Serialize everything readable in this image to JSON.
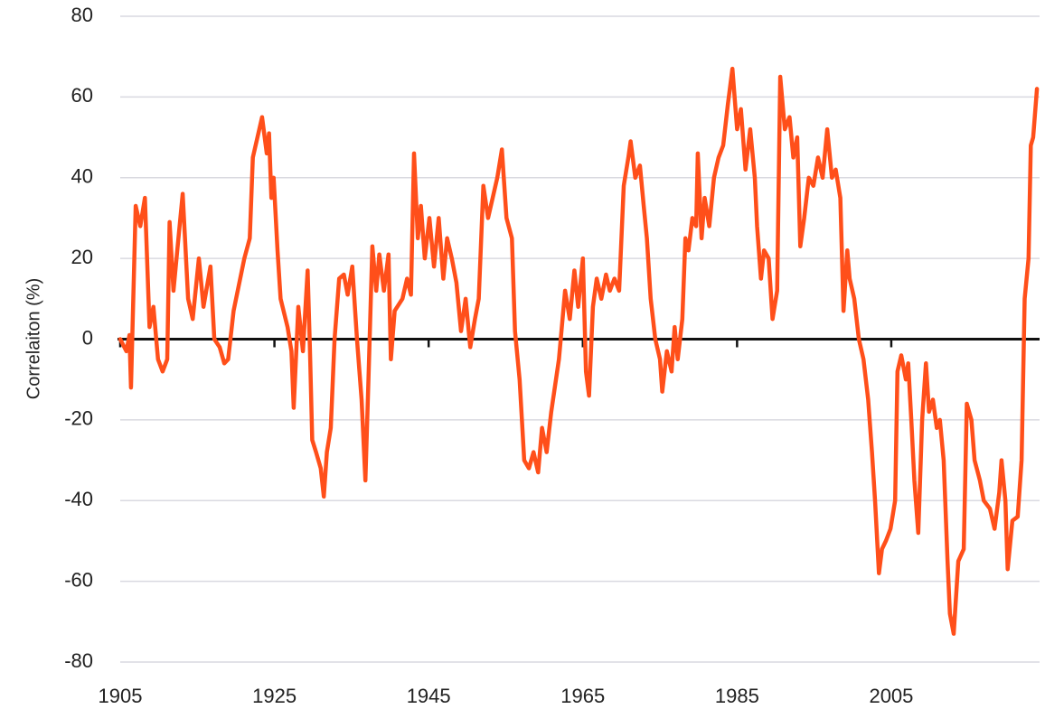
{
  "chart_data": {
    "type": "line",
    "y_label": "Correlaiton (%)",
    "color": "#ff4f1a",
    "grid": true,
    "xlim": [
      1905,
      2024
    ],
    "xticks": [
      1905,
      1925,
      1945,
      1965,
      1985,
      2005
    ],
    "ylim": [
      -80,
      80
    ],
    "yticks": [
      -80,
      -60,
      -40,
      -20,
      0,
      20,
      40,
      60,
      80
    ],
    "x": [
      1905.0,
      1905.8,
      1906.2,
      1906.4,
      1907.0,
      1907.6,
      1908.2,
      1908.8,
      1909.3,
      1909.9,
      1910.5,
      1911.1,
      1911.4,
      1911.9,
      1912.4,
      1913.1,
      1913.8,
      1914.4,
      1915.2,
      1915.8,
      1916.7,
      1917.2,
      1917.9,
      1918.5,
      1919.0,
      1919.7,
      1921.1,
      1921.8,
      1922.2,
      1922.8,
      1923.4,
      1924.0,
      1924.3,
      1924.6,
      1924.9,
      1925.4,
      1925.8,
      1926.7,
      1927.2,
      1927.5,
      1928.1,
      1928.7,
      1929.3,
      1929.6,
      1929.9,
      1930.4,
      1931.0,
      1931.4,
      1931.8,
      1932.3,
      1932.8,
      1933.4,
      1934.0,
      1934.5,
      1935.1,
      1935.7,
      1936.3,
      1936.8,
      1937.2,
      1937.7,
      1938.2,
      1938.6,
      1939.2,
      1939.8,
      1940.1,
      1940.6,
      1941.6,
      1942.2,
      1942.7,
      1943.1,
      1943.6,
      1944.0,
      1944.5,
      1945.1,
      1945.7,
      1946.3,
      1946.9,
      1947.4,
      1948.0,
      1948.6,
      1949.2,
      1949.8,
      1950.4,
      1951.0,
      1951.5,
      1952.1,
      1952.7,
      1953.3,
      1953.9,
      1954.5,
      1955.1,
      1955.8,
      1956.2,
      1956.8,
      1957.4,
      1958.0,
      1958.6,
      1959.2,
      1959.7,
      1960.3,
      1960.9,
      1961.9,
      1962.7,
      1963.3,
      1963.9,
      1964.4,
      1965.0,
      1965.4,
      1965.8,
      1966.3,
      1966.8,
      1967.4,
      1968.0,
      1968.5,
      1969.1,
      1969.7,
      1970.3,
      1970.9,
      1971.2,
      1971.8,
      1972.4,
      1972.9,
      1973.3,
      1973.8,
      1974.4,
      1975.0,
      1975.3,
      1975.9,
      1976.5,
      1976.9,
      1977.3,
      1977.9,
      1978.3,
      1978.7,
      1979.2,
      1979.7,
      1979.9,
      1980.4,
      1980.8,
      1981.4,
      1982.0,
      1982.6,
      1983.2,
      1983.8,
      1984.4,
      1985.0,
      1985.5,
      1986.1,
      1986.7,
      1987.3,
      1987.6,
      1988.1,
      1988.5,
      1989.1,
      1989.6,
      1990.2,
      1990.6,
      1991.2,
      1991.8,
      1992.3,
      1992.8,
      1993.2,
      1993.7,
      1994.3,
      1994.9,
      1995.5,
      1996.1,
      1996.7,
      1997.3,
      1997.8,
      1998.4,
      1998.8,
      1999.3,
      1999.6,
      2000.2,
      2000.8,
      2001.4,
      2002.0,
      2002.5,
      2002.9,
      2003.4,
      2003.8,
      2004.3,
      2004.9,
      2005.5,
      2005.8,
      2006.3,
      2006.9,
      2007.2,
      2007.6,
      2008.0,
      2008.5,
      2009.0,
      2009.5,
      2009.9,
      2010.4,
      2010.9,
      2011.3,
      2011.8,
      2012.3,
      2012.6,
      2013.1,
      2013.7,
      2014.4,
      2014.8,
      2015.4,
      2015.8,
      2016.5,
      2017.0,
      2017.8,
      2018.4,
      2019.0,
      2019.3,
      2019.8,
      2020.1,
      2020.7,
      2021.4,
      2021.9,
      2022.3,
      2022.8,
      2023.1,
      2023.4,
      2023.9
    ],
    "values": [
      0,
      -3,
      1,
      -12,
      33,
      28,
      35,
      3,
      8,
      -5,
      -8,
      -5,
      29,
      12,
      22,
      36,
      10,
      5,
      20,
      8,
      18,
      0,
      -2,
      -6,
      -5,
      7,
      20,
      25,
      45,
      50,
      55,
      46,
      51,
      35,
      40,
      22,
      10,
      3,
      -3,
      -17,
      8,
      -3,
      17,
      -2,
      -25,
      -28,
      -32,
      -39,
      -28,
      -22,
      0,
      15,
      16,
      11,
      18,
      0,
      -15,
      -35,
      -10,
      23,
      12,
      21,
      12,
      21,
      -5,
      7,
      10,
      15,
      11,
      46,
      25,
      33,
      20,
      30,
      18,
      30,
      15,
      25,
      20,
      14,
      2,
      10,
      -2,
      5,
      10,
      38,
      30,
      35,
      40,
      47,
      30,
      25,
      2,
      -10,
      -30,
      -32,
      -28,
      -33,
      -22,
      -28,
      -18,
      -5,
      12,
      5,
      17,
      8,
      20,
      -8,
      -14,
      8,
      15,
      10,
      16,
      12,
      15,
      12,
      38,
      45,
      49,
      40,
      43,
      33,
      25,
      10,
      0,
      -5,
      -13,
      -3,
      -8,
      3,
      -5,
      5,
      25,
      22,
      30,
      28,
      46,
      25,
      35,
      28,
      40,
      45,
      48,
      58,
      67,
      52,
      57,
      42,
      52,
      40,
      28,
      15,
      22,
      20,
      5,
      12,
      65,
      52,
      55,
      45,
      50,
      23,
      30,
      40,
      38,
      45,
      40,
      52,
      40,
      42,
      35,
      7,
      22,
      15,
      10,
      0,
      -5,
      -15,
      -28,
      -40,
      -58,
      -52,
      -50,
      -47,
      -40,
      -8,
      -4,
      -10,
      -6,
      -20,
      -35,
      -48,
      -20,
      -6,
      -18,
      -15,
      -22,
      -20,
      -30,
      -55,
      -68,
      -73,
      -55,
      -52,
      -16,
      -20,
      -30,
      -35,
      -40,
      -42,
      -47,
      -38,
      -30,
      -40,
      -57,
      -45,
      -44,
      -30,
      10,
      20,
      48,
      50,
      62
    ]
  }
}
